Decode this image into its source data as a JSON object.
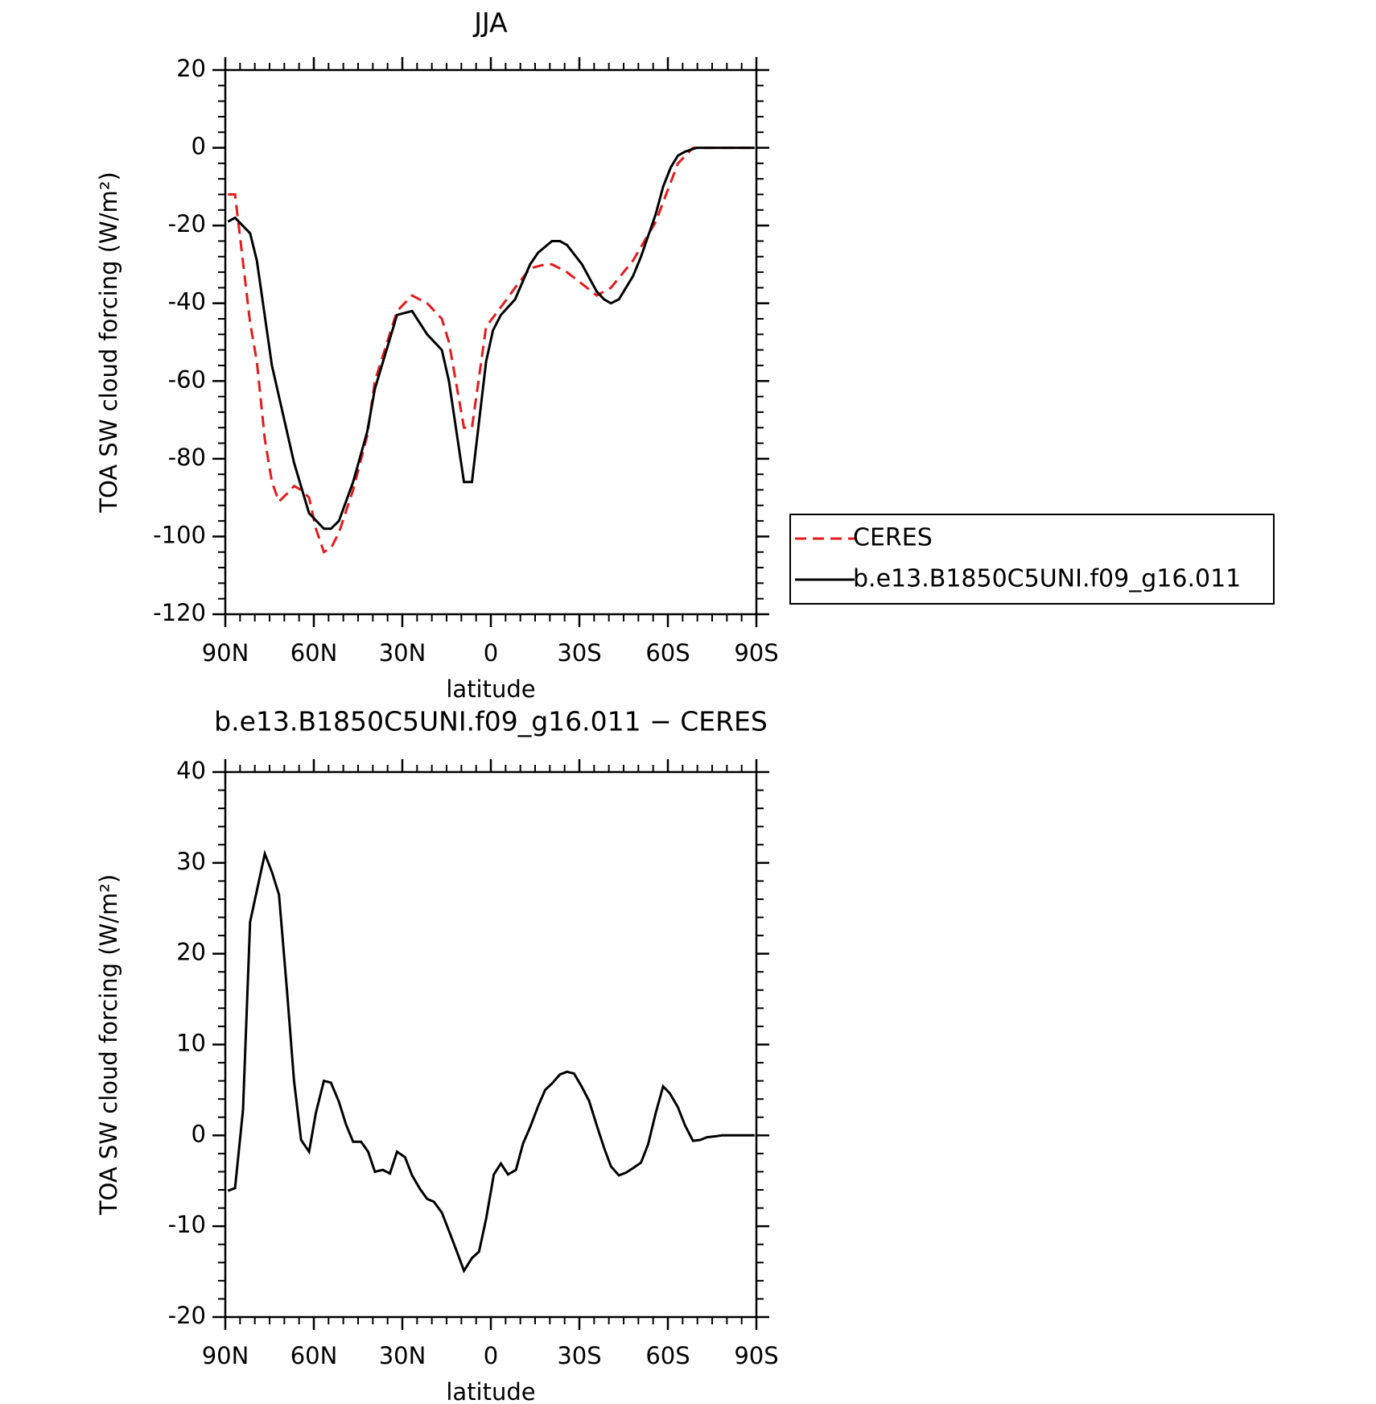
{
  "chart_data": [
    {
      "type": "line",
      "title": "JJA",
      "xlabel": "latitude",
      "ylabel": "TOA SW cloud forcing (W/m²)",
      "xlim": [
        90,
        -90
      ],
      "xticks": [
        {
          "value": 90,
          "label": "90N"
        },
        {
          "value": 60,
          "label": "60N"
        },
        {
          "value": 30,
          "label": "30N"
        },
        0,
        {
          "value": -30,
          "label": "30S"
        },
        {
          "value": -60,
          "label": "60S"
        },
        {
          "value": -90,
          "label": "90S"
        }
      ],
      "ylim": [
        -120,
        20
      ],
      "yticks": [
        -120,
        -100,
        -80,
        -60,
        -40,
        -20,
        0,
        20
      ],
      "legend": "outside-right",
      "series": [
        {
          "name": "CERES",
          "color": "#e41a1c",
          "dash": true,
          "x": [
            89.1,
            86.7,
            81.6,
            79.3,
            76.6,
            74.2,
            71.8,
            69.1,
            66.7,
            64.3,
            61.6,
            59.3,
            56.6,
            54.2,
            51.5,
            46.7,
            41.9,
            39.3,
            31.8,
            26.7,
            21.6,
            16.6,
            14.2,
            9.1,
            6.4,
            1.6,
            -3.4,
            -8.2,
            -13.3,
            -18.4,
            -20.7,
            -25.8,
            -30.9,
            -35.9,
            -40.7,
            -48.2,
            -55.9,
            -58.4,
            -63.4,
            -68.5,
            -75.7,
            -89.4
          ],
          "values": [
            -12,
            -12,
            -45,
            -55,
            -75,
            -86,
            -91,
            -89,
            -87,
            -88,
            -90,
            -98,
            -104,
            -103,
            -99,
            -88,
            -74,
            -60,
            -42,
            -38,
            -40,
            -44,
            -50,
            -72,
            -72,
            -46,
            -41,
            -36,
            -31,
            -30,
            -30,
            -32,
            -35,
            -38,
            -36,
            -29,
            -19,
            -14,
            -4,
            0,
            0,
            0
          ]
        },
        {
          "name": "b.e13.B1850C5UNI.f09_g16.011",
          "color": "#000000",
          "dash": false,
          "x": [
            89.1,
            86.7,
            81.6,
            79.3,
            74.2,
            71.8,
            66.7,
            61.6,
            56.6,
            54.2,
            51.5,
            46.7,
            41.9,
            39.3,
            31.8,
            26.7,
            21.6,
            16.6,
            14.2,
            9.1,
            6.4,
            1.6,
            -0.7,
            -3.4,
            -8.2,
            -13.3,
            -16.0,
            -20.7,
            -23.4,
            -25.8,
            -30.9,
            -35.9,
            -38.4,
            -40.7,
            -43.4,
            -48.2,
            -50.9,
            -55.9,
            -58.4,
            -61.0,
            -63.4,
            -65.8,
            -69.7,
            -75.7,
            -83.1,
            -89.4
          ],
          "values": [
            -19,
            -18,
            -22,
            -29,
            -56,
            -64,
            -81,
            -94,
            -98,
            -98,
            -96,
            -86,
            -73,
            -62,
            -43,
            -42,
            -48,
            -52,
            -60,
            -86,
            -86,
            -55,
            -47,
            -43,
            -39,
            -30,
            -27,
            -24,
            -24,
            -25,
            -30,
            -37,
            -39,
            -40,
            -39,
            -33,
            -28,
            -17,
            -10,
            -5,
            -2,
            -1,
            0,
            0,
            0,
            0
          ]
        }
      ]
    },
    {
      "type": "line",
      "title": "b.e13.B1850C5UNI.f09_g16.011 − CERES",
      "xlabel": "latitude",
      "ylabel": "TOA SW cloud forcing (W/m²)",
      "xlim": [
        90,
        -90
      ],
      "xticks": [
        {
          "value": 90,
          "label": "90N"
        },
        {
          "value": 60,
          "label": "60N"
        },
        {
          "value": 30,
          "label": "30N"
        },
        0,
        {
          "value": -30,
          "label": "30S"
        },
        {
          "value": -60,
          "label": "60S"
        },
        {
          "value": -90,
          "label": "90S"
        }
      ],
      "ylim": [
        -20,
        40
      ],
      "yticks": [
        -20,
        -10,
        0,
        10,
        20,
        30,
        40
      ],
      "series": [
        {
          "color": "#000000",
          "dash": false,
          "x": [
            89.1,
            86.7,
            84.0,
            81.6,
            76.6,
            74.2,
            71.8,
            69.1,
            66.7,
            64.3,
            61.6,
            59.3,
            56.6,
            54.2,
            51.5,
            49.1,
            46.7,
            44.0,
            41.6,
            39.3,
            36.6,
            34.2,
            31.8,
            29.1,
            26.7,
            24.0,
            21.6,
            19.3,
            16.6,
            14.2,
            11.5,
            9.1,
            6.4,
            4.0,
            1.6,
            -1.0,
            -3.4,
            -5.8,
            -8.5,
            -10.9,
            -13.3,
            -16.0,
            -18.4,
            -20.7,
            -23.4,
            -25.8,
            -28.2,
            -30.9,
            -33.3,
            -35.9,
            -38.4,
            -40.7,
            -43.4,
            -45.8,
            -48.2,
            -50.9,
            -53.3,
            -55.9,
            -58.4,
            -60.7,
            -63.4,
            -65.8,
            -68.5,
            -70.9,
            -73.3,
            -76.0,
            -78.4,
            -89.4
          ],
          "values": [
            -6.1,
            -5.8,
            2.8,
            23.5,
            31,
            29,
            26.5,
            16,
            6,
            -0.5,
            -1.8,
            2.5,
            6,
            5.8,
            3.7,
            1.2,
            -0.7,
            -0.7,
            -1.8,
            -4.0,
            -3.8,
            -4.2,
            -1.8,
            -2.4,
            -4.4,
            -5.9,
            -7.0,
            -7.3,
            -8.5,
            -10.5,
            -12.8,
            -14.9,
            -13.5,
            -12.8,
            -9.2,
            -4.3,
            -3.1,
            -4.3,
            -3.8,
            -0.9,
            0.9,
            3.2,
            5.0,
            5.7,
            6.7,
            7.0,
            6.8,
            5.3,
            3.8,
            1.1,
            -1.4,
            -3.4,
            -4.4,
            -4.1,
            -3.6,
            -3.0,
            -1.0,
            2.5,
            5.4,
            4.6,
            3.1,
            1.1,
            -0.6,
            -0.5,
            -0.2,
            -0.1,
            0,
            0
          ]
        }
      ]
    }
  ]
}
